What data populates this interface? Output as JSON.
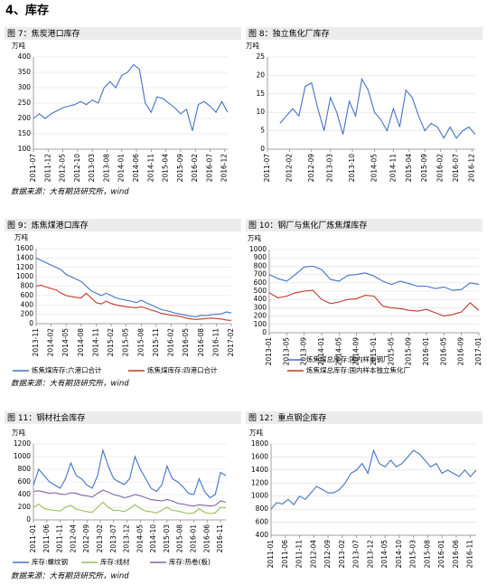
{
  "heading": "4、库存",
  "chart_data": [
    {
      "type": "line",
      "title": "图 7：焦炭港口库存",
      "unit": "万吨",
      "source": "数据来源：大有期货研究所，wind",
      "x": [
        "2011-07",
        "2011-09",
        "2011-11",
        "2012-01",
        "2012-03",
        "2012-05",
        "2012-07",
        "2012-09",
        "2012-11",
        "2013-01",
        "2013-03",
        "2013-05",
        "2013-07",
        "2013-09",
        "2013-11",
        "2014-01",
        "2014-03",
        "2014-05",
        "2014-07",
        "2014-09",
        "2014-11",
        "2015-01",
        "2015-03",
        "2015-05",
        "2015-07",
        "2015-09",
        "2015-11",
        "2016-01",
        "2016-03",
        "2016-05",
        "2016-07",
        "2016-09",
        "2016-11",
        "2017-01"
      ],
      "xticks": [
        "2011-07",
        "2011-12",
        "2012-05",
        "2012-10",
        "2013-03",
        "2013-08",
        "2014-01",
        "2014-06",
        "2014-11",
        "2015-04",
        "2015-09",
        "2016-02",
        "2016-07",
        "2016-12"
      ],
      "ylim": [
        100,
        400
      ],
      "yticks": [
        100,
        150,
        200,
        250,
        300,
        350,
        400
      ],
      "series": [
        {
          "color": "#4472c4",
          "values": [
            200,
            215,
            200,
            215,
            225,
            235,
            240,
            245,
            255,
            245,
            260,
            250,
            300,
            320,
            300,
            340,
            350,
            375,
            360,
            250,
            220,
            270,
            265,
            250,
            235,
            215,
            230,
            160,
            245,
            255,
            240,
            220,
            255,
            220
          ]
        }
      ]
    },
    {
      "type": "line",
      "title": "图 8：独立焦化厂库存",
      "unit": "万吨",
      "x": [
        "2011-11",
        "2012-01",
        "2012-03",
        "2012-05",
        "2012-07",
        "2012-09",
        "2012-11",
        "2013-01",
        "2013-03",
        "2013-05",
        "2013-07",
        "2013-09",
        "2013-11",
        "2014-01",
        "2014-03",
        "2014-05",
        "2014-07",
        "2014-09",
        "2014-11",
        "2015-01",
        "2015-03",
        "2015-05",
        "2015-07",
        "2015-09",
        "2015-11",
        "2016-01",
        "2016-03",
        "2016-05",
        "2016-07",
        "2016-09",
        "2016-11",
        "2017-01"
      ],
      "xticks": [
        "2011-07",
        "2012-02",
        "2012-09",
        "2013-03",
        "2013-10",
        "2014-05",
        "2014-11",
        "2015-04",
        "2015-09",
        "2016-02",
        "2016-07",
        "2016-12"
      ],
      "ylim": [
        0,
        25
      ],
      "yticks": [
        0,
        5,
        10,
        15,
        20,
        25
      ],
      "series": [
        {
          "color": "#4472c4",
          "values": [
            7,
            9,
            11,
            9,
            17,
            18,
            11,
            5,
            14,
            10,
            4,
            13,
            9,
            19,
            16,
            10,
            8,
            5,
            11,
            6,
            16,
            14,
            9,
            5,
            7,
            6,
            3,
            6,
            3,
            5,
            6,
            4
          ]
        }
      ]
    },
    {
      "type": "line",
      "title": "图 9：炼焦煤港口库存",
      "unit": "万吨",
      "source": "数据来源：大有期货研究所，wind",
      "x": [
        "2013-11",
        "2013-12",
        "2014-01",
        "2014-02",
        "2014-03",
        "2014-04",
        "2014-05",
        "2014-06",
        "2014-07",
        "2014-08",
        "2014-09",
        "2014-10",
        "2014-11",
        "2014-12",
        "2015-01",
        "2015-02",
        "2015-03",
        "2015-04",
        "2015-05",
        "2015-06",
        "2015-07",
        "2015-08",
        "2015-09",
        "2015-10",
        "2015-11",
        "2015-12",
        "2016-01",
        "2016-02",
        "2016-03",
        "2016-04",
        "2016-05",
        "2016-06",
        "2016-07",
        "2016-08",
        "2016-09",
        "2016-10",
        "2016-11",
        "2016-12",
        "2017-01",
        "2017-02"
      ],
      "xticks": [
        "2013-11",
        "2014-02",
        "2014-05",
        "2014-08",
        "2014-11",
        "2015-02",
        "2015-05",
        "2015-08",
        "2015-11",
        "2016-02",
        "2016-05",
        "2016-08",
        "2016-11",
        "2017-02"
      ],
      "ylim": [
        0,
        1600
      ],
      "yticks": [
        0,
        200,
        400,
        600,
        800,
        1000,
        1200,
        1400,
        1600
      ],
      "series": [
        {
          "name": "炼焦煤库存:六港口合计",
          "color": "#4472c4",
          "values": [
            1400,
            1350,
            1300,
            1250,
            1200,
            1150,
            1050,
            1000,
            950,
            900,
            800,
            700,
            650,
            600,
            650,
            600,
            550,
            520,
            500,
            480,
            450,
            500,
            450,
            400,
            350,
            300,
            280,
            250,
            220,
            200,
            180,
            160,
            150,
            180,
            170,
            190,
            200,
            210,
            250,
            230
          ]
        },
        {
          "name": "炼焦煤库存:四港口合计",
          "color": "#c0392b",
          "values": [
            800,
            820,
            780,
            750,
            720,
            650,
            600,
            580,
            560,
            550,
            650,
            550,
            450,
            420,
            480,
            430,
            400,
            380,
            360,
            350,
            340,
            360,
            330,
            290,
            260,
            220,
            200,
            180,
            170,
            150,
            120,
            100,
            90,
            100,
            110,
            120,
            110,
            100,
            80,
            70
          ]
        }
      ]
    },
    {
      "type": "line",
      "title": "图 10：钢厂与焦化厂炼焦煤库存",
      "unit": "万吨",
      "x": [
        "2013-01",
        "2013-03",
        "2013-05",
        "2013-07",
        "2013-09",
        "2013-11",
        "2014-01",
        "2014-03",
        "2014-05",
        "2014-07",
        "2014-09",
        "2014-11",
        "2015-01",
        "2015-03",
        "2015-05",
        "2015-07",
        "2015-09",
        "2015-11",
        "2016-01",
        "2016-03",
        "2016-05",
        "2016-07",
        "2016-09",
        "2016-11",
        "2017-01"
      ],
      "xticks": [
        "2013-01",
        "2013-05",
        "2013-09",
        "2014-01",
        "2014-05",
        "2014-09",
        "2015-01",
        "2015-05",
        "2015-09",
        "2016-01",
        "2016-05",
        "2016-09",
        "2017-01"
      ],
      "ylim": [
        0,
        1000
      ],
      "yticks": [
        0,
        100,
        200,
        300,
        400,
        500,
        600,
        700,
        800,
        900,
        1000
      ],
      "series": [
        {
          "name": "炼焦煤总库存:国内样本钢厂",
          "color": "#4472c4",
          "values": [
            700,
            650,
            620,
            700,
            790,
            800,
            760,
            640,
            620,
            690,
            700,
            720,
            680,
            620,
            580,
            620,
            590,
            560,
            560,
            530,
            550,
            510,
            520,
            600,
            580
          ]
        },
        {
          "name": "炼焦煤总库存:国内样本独立焦化厂",
          "color": "#c0392b",
          "values": [
            480,
            420,
            440,
            480,
            500,
            510,
            400,
            350,
            370,
            400,
            410,
            450,
            440,
            320,
            300,
            290,
            270,
            260,
            280,
            240,
            200,
            220,
            250,
            360,
            270
          ]
        }
      ]
    },
    {
      "type": "line",
      "title": "图 11：钢材社会库存",
      "unit": "万吨",
      "source": "数据来源：大有期货研究所，wind",
      "x": [
        "2011-01",
        "2011-03",
        "2011-05",
        "2011-07",
        "2011-09",
        "2011-11",
        "2012-01",
        "2012-03",
        "2012-05",
        "2012-07",
        "2012-09",
        "2012-11",
        "2013-01",
        "2013-03",
        "2013-05",
        "2013-07",
        "2013-09",
        "2013-11",
        "2014-01",
        "2014-03",
        "2014-05",
        "2014-07",
        "2014-09",
        "2014-11",
        "2015-01",
        "2015-03",
        "2015-05",
        "2015-07",
        "2015-09",
        "2015-11",
        "2016-01",
        "2016-03",
        "2016-05",
        "2016-07",
        "2016-09",
        "2016-11",
        "2017-01"
      ],
      "xticks": [
        "2011-01",
        "2011-06",
        "2011-11",
        "2012-04",
        "2012-09",
        "2013-02",
        "2013-07",
        "2013-12",
        "2014-05",
        "2014-10",
        "2015-03",
        "2015-08",
        "2016-01",
        "2016-06",
        "2016-11"
      ],
      "ylim": [
        0,
        1200
      ],
      "yticks": [
        0,
        200,
        400,
        600,
        800,
        1000,
        1200
      ],
      "series": [
        {
          "name": "库存:螺纹钢",
          "color": "#4472c4",
          "values": [
            550,
            800,
            700,
            600,
            550,
            500,
            650,
            900,
            700,
            650,
            550,
            500,
            700,
            1100,
            850,
            650,
            600,
            560,
            650,
            1000,
            800,
            650,
            500,
            450,
            550,
            850,
            650,
            600,
            520,
            420,
            400,
            650,
            450,
            350,
            400,
            750,
            700
          ]
        },
        {
          "name": "库存:线材",
          "color": "#9bbb59",
          "values": [
            200,
            250,
            180,
            160,
            150,
            140,
            200,
            230,
            170,
            150,
            130,
            120,
            200,
            280,
            200,
            150,
            150,
            130,
            180,
            240,
            180,
            140,
            130,
            110,
            150,
            200,
            150,
            140,
            120,
            100,
            110,
            180,
            120,
            100,
            110,
            200,
            190
          ]
        },
        {
          "name": "库存:热卷(板)",
          "color": "#8064a2",
          "values": [
            450,
            460,
            440,
            420,
            430,
            410,
            400,
            430,
            420,
            390,
            380,
            360,
            420,
            470,
            440,
            400,
            380,
            350,
            370,
            400,
            380,
            350,
            320,
            310,
            300,
            320,
            300,
            260,
            250,
            230,
            220,
            240,
            230,
            220,
            230,
            300,
            280
          ]
        }
      ]
    },
    {
      "type": "line",
      "title": "图 12：重点钢企库存",
      "unit": "万吨",
      "x": [
        "2011-01",
        "2011-03",
        "2011-05",
        "2011-07",
        "2011-09",
        "2011-11",
        "2012-01",
        "2012-03",
        "2012-05",
        "2012-07",
        "2012-09",
        "2012-11",
        "2013-01",
        "2013-03",
        "2013-05",
        "2013-07",
        "2013-09",
        "2013-11",
        "2014-01",
        "2014-03",
        "2014-05",
        "2014-07",
        "2014-09",
        "2014-11",
        "2015-01",
        "2015-03",
        "2015-05",
        "2015-07",
        "2015-09",
        "2015-11",
        "2016-01",
        "2016-03",
        "2016-05",
        "2016-07",
        "2016-09",
        "2016-11",
        "2017-01"
      ],
      "xticks": [
        "2011-01",
        "2011-06",
        "2011-11",
        "2012-04",
        "2012-09",
        "2013-02",
        "2013-07",
        "2013-12",
        "2014-05",
        "2014-10",
        "2015-03",
        "2015-08",
        "2016-01",
        "2016-06",
        "2016-11"
      ],
      "ylim": [
        400,
        1800
      ],
      "yticks": [
        400,
        600,
        800,
        1000,
        1200,
        1400,
        1600,
        1800
      ],
      "series": [
        {
          "color": "#4472c4",
          "values": [
            800,
            900,
            880,
            950,
            870,
            1000,
            950,
            1050,
            1150,
            1100,
            1050,
            1050,
            1100,
            1200,
            1350,
            1400,
            1500,
            1350,
            1700,
            1500,
            1450,
            1550,
            1450,
            1500,
            1600,
            1700,
            1650,
            1550,
            1450,
            1500,
            1350,
            1400,
            1350,
            1300,
            1400,
            1300,
            1400
          ]
        }
      ]
    }
  ]
}
